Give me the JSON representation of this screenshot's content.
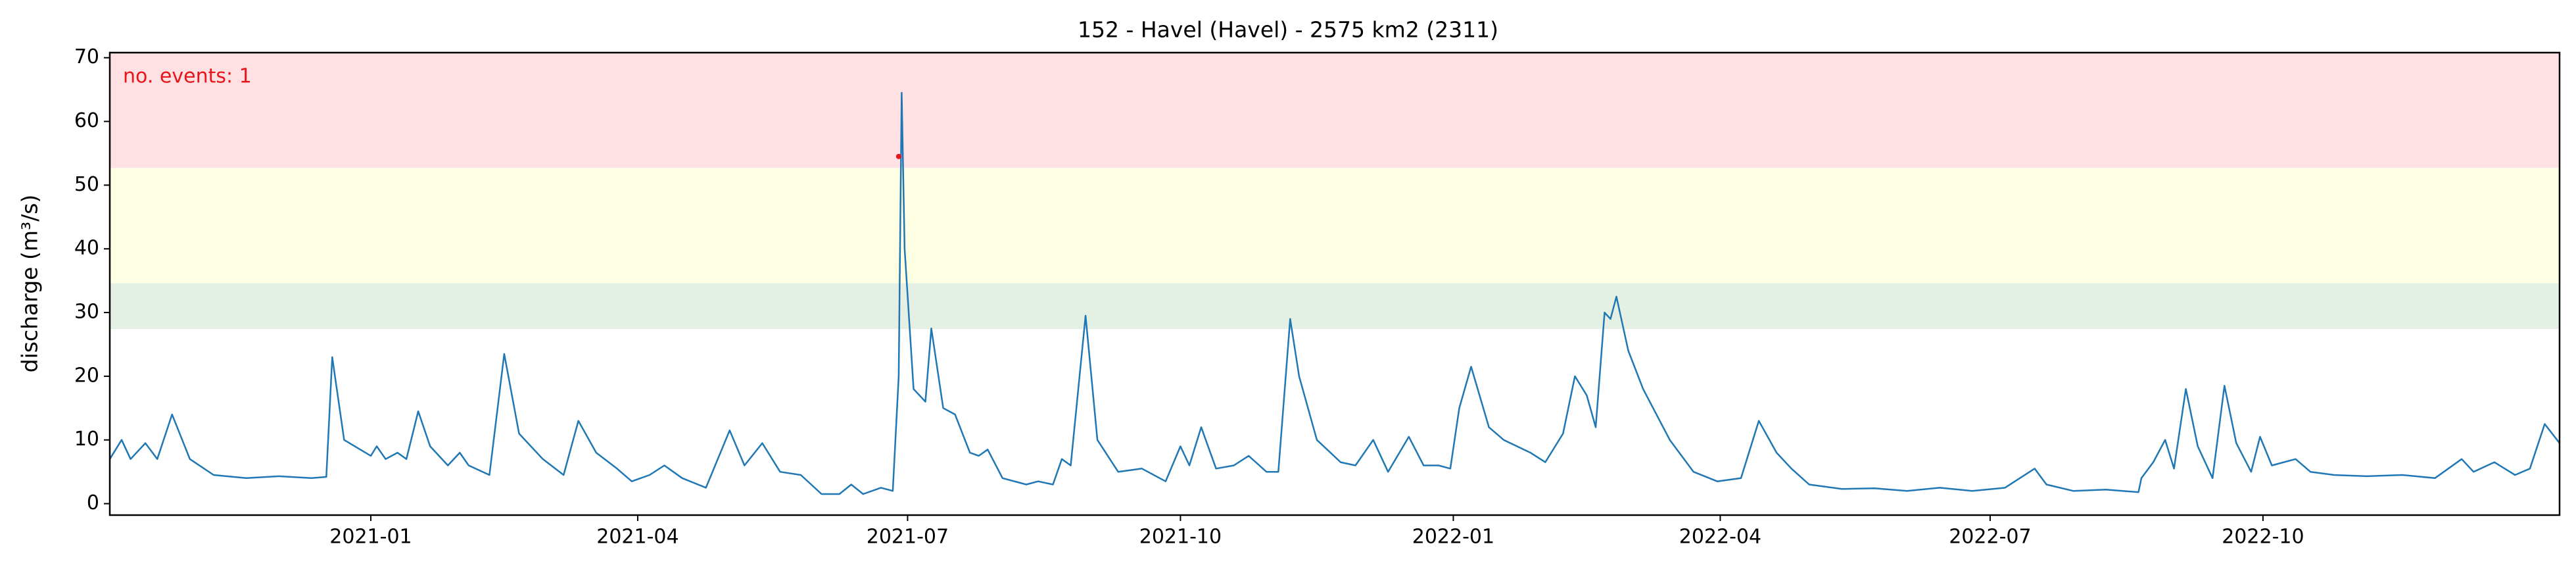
{
  "chart_data": {
    "type": "line",
    "title": "152 - Havel (Havel) - 2575 km2 (2311)",
    "y_label": "discharge (m³/s)",
    "annotation": "no. events: 1",
    "xlim": [
      18540,
      19366
    ],
    "xticks": [
      {
        "value": 18628,
        "label": "2021-01"
      },
      {
        "value": 18718,
        "label": "2021-04"
      },
      {
        "value": 18809,
        "label": "2021-07"
      },
      {
        "value": 18901,
        "label": "2021-10"
      },
      {
        "value": 18993,
        "label": "2022-01"
      },
      {
        "value": 19083,
        "label": "2022-04"
      },
      {
        "value": 19174,
        "label": "2022-07"
      },
      {
        "value": 19266,
        "label": "2022-10"
      }
    ],
    "ylim": [
      -1.8,
      70.8
    ],
    "yticks": [
      0,
      10,
      20,
      30,
      40,
      50,
      60,
      70
    ],
    "bands": [
      {
        "from": 27.4,
        "to": 34.6,
        "color": "#e5f0e5"
      },
      {
        "from": 34.6,
        "to": 52.7,
        "color": "#ffffe3"
      },
      {
        "from": 52.7,
        "to": 70.8,
        "color": "#ffe1e4"
      }
    ],
    "series": [
      {
        "color": "#1f77b4",
        "x": [
          18540,
          18544,
          18547,
          18552,
          18556,
          18561,
          18567,
          18575,
          18586,
          18597,
          18608,
          18613,
          18615,
          18619,
          18628,
          18630,
          18633,
          18637,
          18640,
          18644,
          18648,
          18654,
          18658,
          18661,
          18668,
          18673,
          18678,
          18686,
          18693,
          18698,
          18704,
          18711,
          18716,
          18722,
          18727,
          18733,
          18741,
          18749,
          18754,
          18760,
          18766,
          18773,
          18780,
          18786,
          18790,
          18794,
          18800,
          18804,
          18806,
          18807,
          18808,
          18811,
          18815,
          18817,
          18821,
          18825,
          18830,
          18833,
          18836,
          18841,
          18849,
          18853,
          18858,
          18861,
          18864,
          18869,
          18873,
          18880,
          18888,
          18896,
          18901,
          18904,
          18908,
          18913,
          18919,
          18924,
          18930,
          18934,
          18938,
          18941,
          18947,
          18955,
          18960,
          18966,
          18971,
          18978,
          18983,
          18988,
          18992,
          18995,
          18999,
          19005,
          19010,
          19019,
          19024,
          19030,
          19034,
          19038,
          19041,
          19044,
          19046,
          19048,
          19052,
          19057,
          19066,
          19074,
          19082,
          19090,
          19096,
          19102,
          19107,
          19113,
          19124,
          19135,
          19146,
          19157,
          19168,
          19179,
          19189,
          19193,
          19202,
          19213,
          19224,
          19225,
          19229,
          19233,
          19236,
          19240,
          19244,
          19249,
          19253,
          19257,
          19262,
          19265,
          19269,
          19277,
          19282,
          19290,
          19301,
          19313,
          19324,
          19333,
          19337,
          19344,
          19351,
          19356,
          19361,
          19366
        ],
        "values": [
          7,
          10,
          7,
          9.5,
          7,
          14,
          7,
          4.5,
          4,
          4.3,
          4,
          4.2,
          23,
          10,
          7.5,
          9,
          7,
          8,
          7,
          14.5,
          9,
          6,
          8,
          6,
          4.5,
          23.5,
          11,
          7,
          4.5,
          13,
          8,
          5.5,
          3.5,
          4.5,
          6,
          4,
          2.5,
          11.5,
          6,
          9.5,
          5,
          4.5,
          1.5,
          1.5,
          3,
          1.5,
          2.5,
          2,
          20,
          64.5,
          40,
          18,
          16,
          27.5,
          15,
          14,
          8,
          7.5,
          8.5,
          4,
          3,
          3.5,
          3,
          7,
          6,
          29.5,
          10,
          5,
          5.5,
          3.5,
          9,
          6,
          12,
          5.5,
          6,
          7.5,
          5,
          5,
          29,
          20,
          10,
          6.5,
          6,
          10,
          5,
          10.5,
          6,
          6,
          5.5,
          15,
          21.5,
          12,
          10,
          8,
          6.5,
          11,
          20,
          17,
          12,
          30,
          29,
          32.5,
          24,
          18,
          10,
          5,
          3.5,
          4,
          13,
          8,
          5.5,
          3,
          2.3,
          2.4,
          2,
          2.5,
          2,
          2.5,
          5.5,
          3,
          2,
          2.2,
          1.8,
          4,
          6.5,
          10,
          5.5,
          18,
          9,
          4,
          18.5,
          9.5,
          5,
          10.5,
          6,
          7,
          5,
          4.5,
          4.3,
          4.5,
          4,
          7,
          5,
          6.5,
          4.5,
          5.5,
          12.5,
          9.5
        ]
      }
    ],
    "events": {
      "color": "#e8151b",
      "x": [
        18806
      ],
      "values": [
        54.5
      ]
    }
  }
}
